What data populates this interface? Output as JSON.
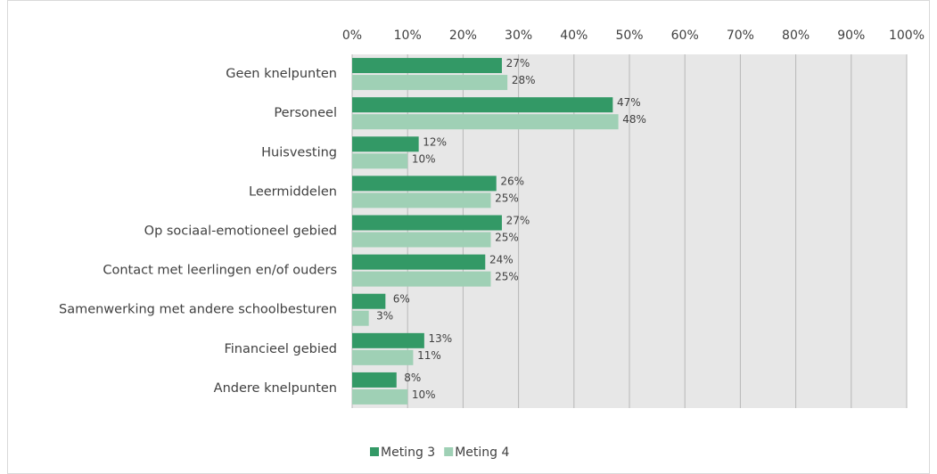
{
  "chart_data": {
    "type": "bar",
    "orientation": "horizontal",
    "categories": [
      "Geen knelpunten",
      "Personeel",
      "Huisvesting",
      "Leermiddelen",
      "Op sociaal-emotioneel gebied",
      "Contact met leerlingen en/of ouders",
      "Samenwerking met andere schoolbesturen",
      "Financieel gebied",
      "Andere knelpunten"
    ],
    "series": [
      {
        "name": "Meting 3",
        "color": "#339966",
        "values": [
          27,
          47,
          12,
          26,
          27,
          24,
          6,
          13,
          8
        ],
        "value_labels": [
          "27%",
          "47%",
          "12%",
          "26%",
          "27%",
          "24%",
          "6%",
          "13%",
          "8%"
        ]
      },
      {
        "name": "Meting 4",
        "color": "#9fd0b5",
        "values": [
          28,
          48,
          10,
          25,
          25,
          25,
          3,
          11,
          10
        ],
        "value_labels": [
          "28%",
          "48%",
          "10%",
          "25%",
          "25%",
          "25%",
          "3%",
          "11%",
          "10%"
        ]
      }
    ],
    "xlim": [
      0,
      100
    ],
    "xticks": [
      {
        "value": 0,
        "label": "0%"
      },
      {
        "value": 10,
        "label": "10%"
      },
      {
        "value": 20,
        "label": "20%"
      },
      {
        "value": 30,
        "label": "30%"
      },
      {
        "value": 40,
        "label": "40%"
      },
      {
        "value": 50,
        "label": "50%"
      },
      {
        "value": 60,
        "label": "60%"
      },
      {
        "value": 70,
        "label": "70%"
      },
      {
        "value": 80,
        "label": "80%"
      },
      {
        "value": 90,
        "label": "90%"
      },
      {
        "value": 100,
        "label": "100%"
      }
    ],
    "grid": true,
    "legend": "bottom"
  }
}
